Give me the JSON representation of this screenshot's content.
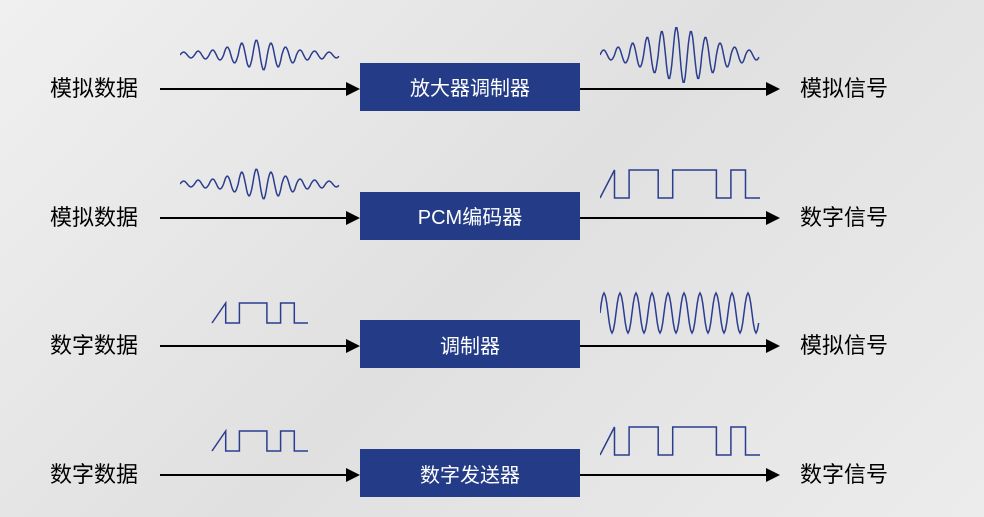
{
  "diagram": {
    "type": "flowchart",
    "background_gradient": [
      "#f0f0f0",
      "#e0e0e0",
      "#ececec"
    ],
    "box_color": "#243c87",
    "box_text_color": "#ffffff",
    "label_color": "#000000",
    "arrow_color": "#000000",
    "wave_color": "#2b3d8f",
    "label_fontsize": 22,
    "box_fontsize": 20,
    "rows": [
      {
        "input": "模拟数据",
        "input_wave": "analog-small",
        "box": "放大器调制器",
        "output_wave": "analog-large",
        "output": "模拟信号"
      },
      {
        "input": "模拟数据",
        "input_wave": "analog-small",
        "box": "PCM编码器",
        "output_wave": "digital-pulse",
        "output": "数字信号"
      },
      {
        "input": "数字数据",
        "input_wave": "digital-small",
        "box": "调制器",
        "output_wave": "analog-fsk",
        "output": "模拟信号"
      },
      {
        "input": "数字数据",
        "input_wave": "digital-small",
        "box": "数字发送器",
        "output_wave": "digital-pulse",
        "output": "数字信号"
      }
    ],
    "waveforms": {
      "analog-small": {
        "type": "sine-varying",
        "amplitude_pattern": [
          3,
          4,
          5,
          8,
          12,
          15,
          12,
          8,
          5,
          4,
          3
        ],
        "color": "#2b3d8f",
        "stroke_width": 1.5
      },
      "analog-large": {
        "type": "sine-varying",
        "amplitude_pattern": [
          5,
          8,
          12,
          18,
          24,
          28,
          24,
          18,
          12,
          8,
          5
        ],
        "color": "#2b3d8f",
        "stroke_width": 1.5
      },
      "digital-small": {
        "type": "square",
        "pattern": [
          1,
          0,
          1,
          1,
          0,
          1,
          0
        ],
        "height": 20,
        "color": "#2b3d8f",
        "stroke_width": 1.5,
        "width_scale": 0.6
      },
      "digital-pulse": {
        "type": "square",
        "pattern": [
          1,
          0,
          1,
          1,
          0,
          1,
          1,
          1,
          0,
          1,
          0
        ],
        "height": 28,
        "color": "#2b3d8f",
        "stroke_width": 1.5
      },
      "analog-fsk": {
        "type": "sine-fsk",
        "segments": [
          {
            "freq": 1.2,
            "cycles": 2,
            "amp": 20
          },
          {
            "freq": 3.5,
            "cycles": 6,
            "amp": 20
          },
          {
            "freq": 1.2,
            "cycles": 2,
            "amp": 20
          }
        ],
        "color": "#2b3d8f",
        "stroke_width": 1.5
      }
    }
  }
}
